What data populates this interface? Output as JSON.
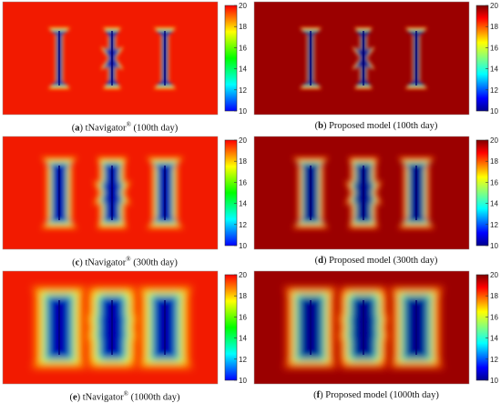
{
  "colorbar": {
    "ticks": [
      "20",
      "18",
      "16",
      "14",
      "12",
      "10"
    ]
  },
  "panels": [
    {
      "letter": "a",
      "title": "tNavigator",
      "mark": "®",
      "day": " (100th day)",
      "bg": "#f21a00",
      "spread": 0.0
    },
    {
      "letter": "b",
      "title": "Proposed model",
      "mark": "",
      "day": " (100th day)",
      "bg": "#9b0000",
      "spread": 0.0
    },
    {
      "letter": "c",
      "title": "tNavigator",
      "mark": "®",
      "day": " (300th day)",
      "bg": "#f21a00",
      "spread": 1.0
    },
    {
      "letter": "d",
      "title": "Proposed model",
      "mark": "",
      "day": " (300th day)",
      "bg": "#9b0000",
      "spread": 1.0
    },
    {
      "letter": "e",
      "title": "tNavigator",
      "mark": "®",
      "day": " (1000th day)",
      "bg": "#f21a00",
      "spread": 2.0
    },
    {
      "letter": "f",
      "title": "Proposed model",
      "mark": "",
      "day": " (1000th day)",
      "bg": "#9b0000",
      "spread": 2.0
    }
  ]
}
